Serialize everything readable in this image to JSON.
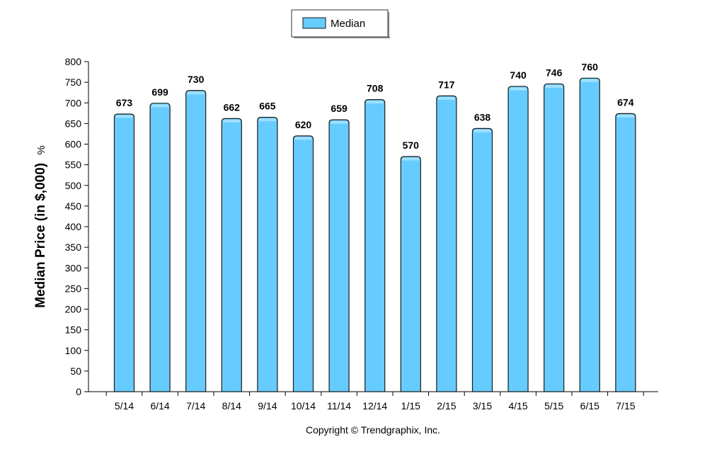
{
  "chart_data": {
    "type": "bar",
    "categories": [
      "5/14",
      "6/14",
      "7/14",
      "8/14",
      "9/14",
      "10/14",
      "11/14",
      "12/14",
      "1/15",
      "2/15",
      "3/15",
      "4/15",
      "5/15",
      "6/15",
      "7/15"
    ],
    "series": [
      {
        "name": "Median",
        "values": [
          673,
          699,
          730,
          662,
          665,
          620,
          659,
          708,
          570,
          717,
          638,
          740,
          746,
          760,
          674
        ]
      }
    ],
    "title": "",
    "xlabel": "",
    "ylabel": "Median Price (in $,000)",
    "ylabel_suffix": "%",
    "ylim": [
      0,
      800
    ],
    "yticks": [
      0,
      50,
      100,
      150,
      200,
      250,
      300,
      350,
      400,
      450,
      500,
      550,
      600,
      650,
      700,
      750,
      800
    ],
    "legend_position": "top-center",
    "grid": false,
    "copyright": "Copyright © Trendgraphix, Inc.",
    "colors": {
      "bar_fill": "#66ccff",
      "bar_top": "#9fe0ff",
      "bar_stroke": "#1a1a1a"
    }
  }
}
